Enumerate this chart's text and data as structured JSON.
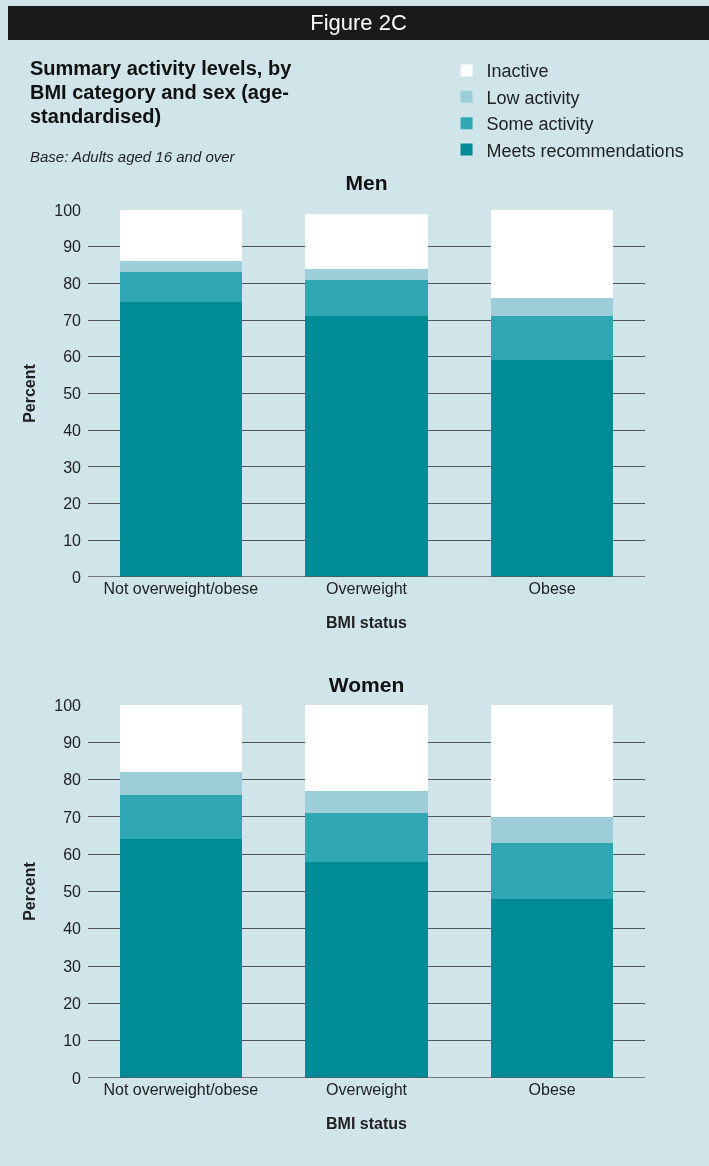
{
  "chart_data": [
    {
      "type": "bar",
      "title": "Men",
      "annotations": [
        "Figure 2C",
        "Summary activity levels, by BMI category and sex (age-standardised)",
        "Base: Adults aged 16 and over"
      ],
      "xlabel": "BMI status",
      "ylabel": "Percent",
      "categories": [
        "Not overweight/obese",
        "Overweight",
        "Obese"
      ],
      "stacked": true,
      "series": [
        {
          "name": "Meets recommendations",
          "color": "#008b96",
          "values": [
            75,
            71,
            59
          ]
        },
        {
          "name": "Some activity",
          "color": "#2fa8b3",
          "values": [
            8,
            10,
            12
          ]
        },
        {
          "name": "Low activity",
          "color": "#9ccdd8",
          "values": [
            3,
            3,
            5
          ]
        },
        {
          "name": "Inactive",
          "color": "#ffffff",
          "values": [
            14,
            15,
            24
          ]
        }
      ],
      "ylim": [
        0,
        100
      ],
      "yticks": [
        0,
        10,
        20,
        30,
        40,
        50,
        60,
        70,
        80,
        90,
        100
      ],
      "grid": "y",
      "legend": "top right"
    },
    {
      "type": "bar",
      "title": "Women",
      "xlabel": "BMI status",
      "ylabel": "Percent",
      "categories": [
        "Not overweight/obese",
        "Overweight",
        "Obese"
      ],
      "stacked": true,
      "series": [
        {
          "color": "#008b96",
          "values": [
            64,
            58,
            48
          ]
        },
        {
          "color": "#2fa8b3",
          "values": [
            12,
            13,
            15
          ]
        },
        {
          "color": "#9ccdd8",
          "values": [
            6,
            6,
            7
          ]
        },
        {
          "color": "#ffffff",
          "values": [
            18,
            23,
            30
          ]
        }
      ],
      "ylim": [
        0,
        100
      ],
      "yticks": [
        0,
        10,
        20,
        30,
        40,
        50,
        60,
        70,
        80,
        90,
        100
      ],
      "grid": "y"
    }
  ]
}
